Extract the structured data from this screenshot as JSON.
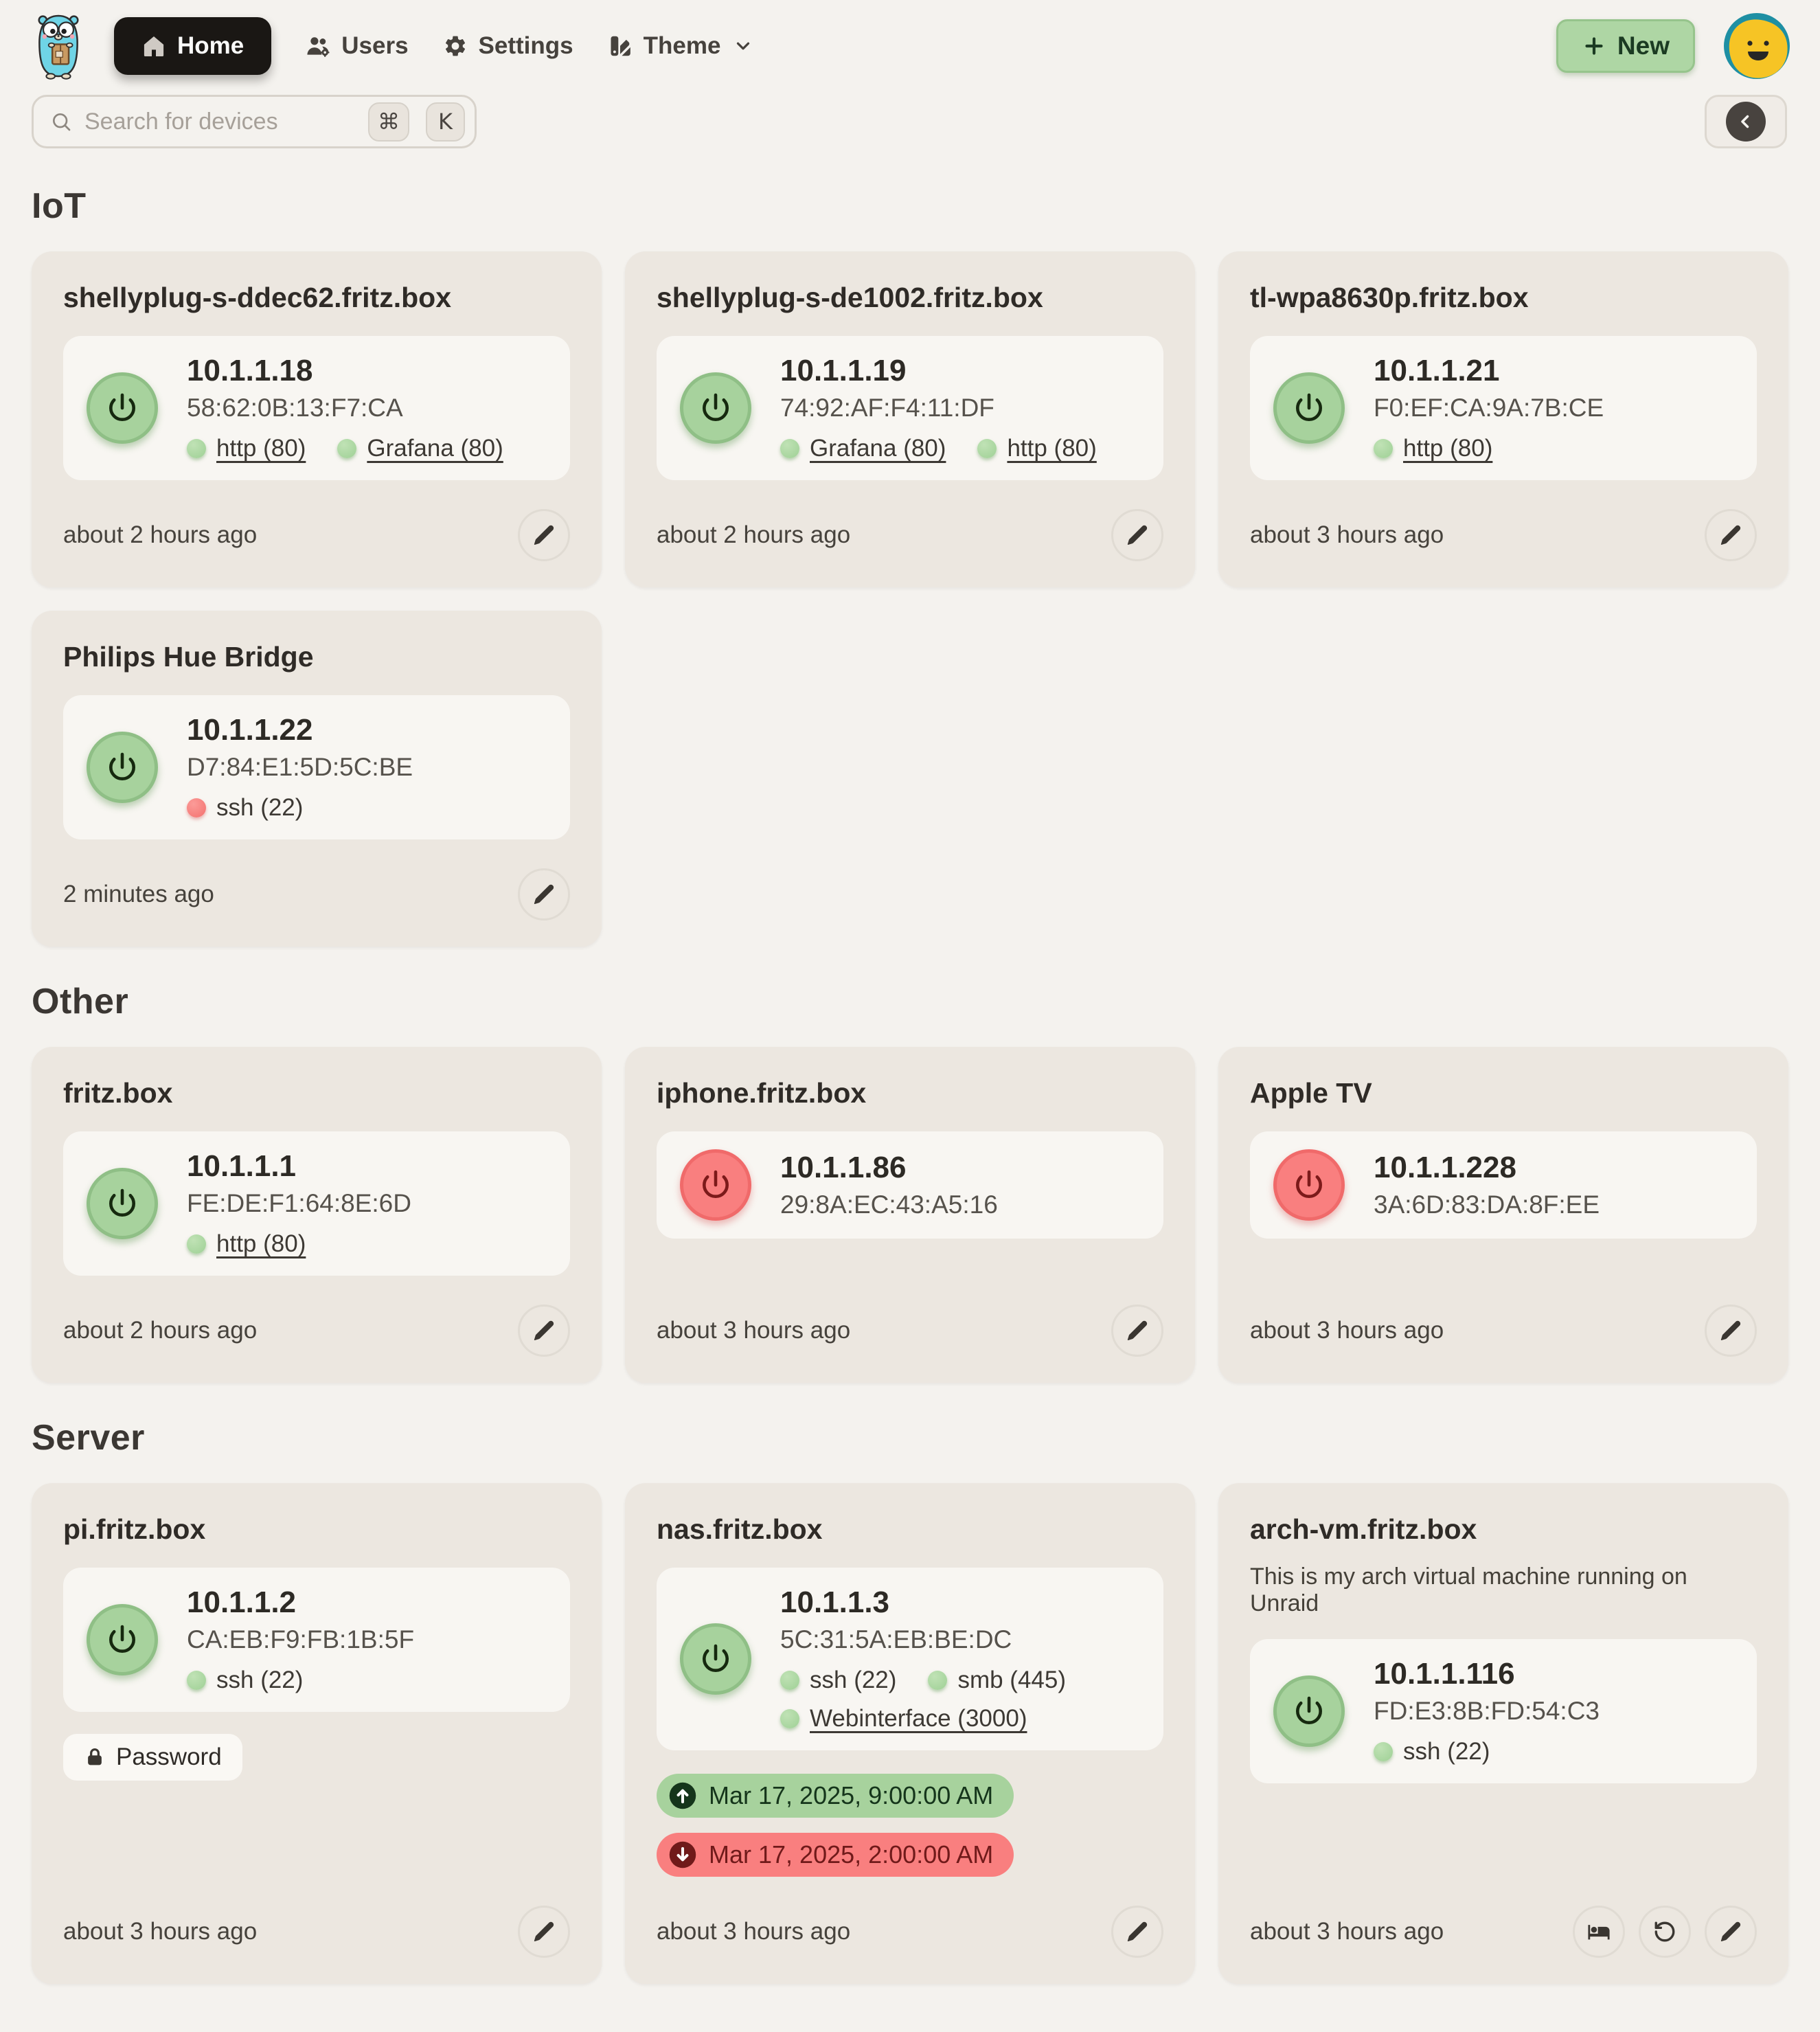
{
  "nav": {
    "logo_icon": "go-gopher-logo",
    "items": [
      {
        "label": "Home",
        "icon": "home-icon",
        "active": true
      },
      {
        "label": "Users",
        "icon": "users-gear-icon",
        "active": false
      },
      {
        "label": "Settings",
        "icon": "gear-icon",
        "active": false
      },
      {
        "label": "Theme",
        "icon": "theme-swatches-icon",
        "active": false,
        "has_dropdown": true
      }
    ],
    "new_label": "New",
    "avatar_icon": "smiley-avatar"
  },
  "search": {
    "placeholder": "Search for devices",
    "shortcut_keys": [
      "⌘",
      "K"
    ]
  },
  "colors": {
    "page_bg": "#f4f2ee",
    "card_bg": "#ece7e0",
    "panel_bg": "#f8f6f2",
    "online_green": "#a7d29d",
    "online_green_border": "#8fbf86",
    "offline_red": "#f97f7f",
    "offline_red_border": "#f06a6a",
    "badge_up_text": "#15351b",
    "badge_down_text": "#701a1a",
    "nav_active_bg": "#1a1714",
    "new_button_bg": "#aed6a4",
    "text_primary": "#2f2b27",
    "text_secondary": "#56524c"
  },
  "sections": [
    {
      "title": "IoT",
      "devices": [
        {
          "name": "shellyplug-s-ddec62.fritz.box",
          "online": true,
          "ip": "10.1.1.18",
          "mac": "58:62:0B:13:F7:CA",
          "ports": [
            {
              "label": "http (80)",
              "open": true,
              "link": true
            },
            {
              "label": "Grafana (80)",
              "open": true,
              "link": true
            }
          ],
          "last_seen": "about 2 hours ago",
          "actions": [
            "edit"
          ]
        },
        {
          "name": "shellyplug-s-de1002.fritz.box",
          "online": true,
          "ip": "10.1.1.19",
          "mac": "74:92:AF:F4:11:DF",
          "ports": [
            {
              "label": "Grafana (80)",
              "open": true,
              "link": true
            },
            {
              "label": "http (80)",
              "open": true,
              "link": true
            }
          ],
          "last_seen": "about 2 hours ago",
          "actions": [
            "edit"
          ]
        },
        {
          "name": "tl-wpa8630p.fritz.box",
          "online": true,
          "ip": "10.1.1.21",
          "mac": "F0:EF:CA:9A:7B:CE",
          "ports": [
            {
              "label": "http (80)",
              "open": true,
              "link": true
            }
          ],
          "last_seen": "about 3 hours ago",
          "actions": [
            "edit"
          ]
        },
        {
          "name": "Philips Hue Bridge",
          "online": true,
          "ip": "10.1.1.22",
          "mac": "D7:84:E1:5D:5C:BE",
          "ports": [
            {
              "label": "ssh (22)",
              "open": false,
              "link": false
            }
          ],
          "last_seen": "2 minutes ago",
          "actions": [
            "edit"
          ]
        }
      ]
    },
    {
      "title": "Other",
      "devices": [
        {
          "name": "fritz.box",
          "online": true,
          "ip": "10.1.1.1",
          "mac": "FE:DE:F1:64:8E:6D",
          "ports": [
            {
              "label": "http (80)",
              "open": true,
              "link": true
            }
          ],
          "last_seen": "about 2 hours ago",
          "actions": [
            "edit"
          ]
        },
        {
          "name": "iphone.fritz.box",
          "online": false,
          "ip": "10.1.1.86",
          "mac": "29:8A:EC:43:A5:16",
          "ports": [],
          "last_seen": "about 3 hours ago",
          "actions": [
            "edit"
          ]
        },
        {
          "name": "Apple TV",
          "online": false,
          "ip": "10.1.1.228",
          "mac": "3A:6D:83:DA:8F:EE",
          "ports": [],
          "last_seen": "about 3 hours ago",
          "actions": [
            "edit"
          ]
        }
      ]
    },
    {
      "title": "Server",
      "devices": [
        {
          "name": "pi.fritz.box",
          "online": true,
          "ip": "10.1.1.2",
          "mac": "CA:EB:F9:FB:1B:5F",
          "ports": [
            {
              "label": "ssh (22)",
              "open": true,
              "link": false
            }
          ],
          "password_label": "Password",
          "last_seen": "about 3 hours ago",
          "actions": [
            "edit"
          ]
        },
        {
          "name": "nas.fritz.box",
          "online": true,
          "ip": "10.1.1.3",
          "mac": "5C:31:5A:EB:BE:DC",
          "ports": [
            {
              "label": "ssh (22)",
              "open": true,
              "link": false
            },
            {
              "label": "smb (445)",
              "open": true,
              "link": false
            },
            {
              "label": "Webinterface (3000)",
              "open": true,
              "link": true
            }
          ],
          "schedule_up": "Mar 17, 2025, 9:00:00 AM",
          "schedule_down": "Mar 17, 2025, 2:00:00 AM",
          "last_seen": "about 3 hours ago",
          "actions": [
            "edit"
          ]
        },
        {
          "name": "arch-vm.fritz.box",
          "description": "This is my arch virtual machine running on Unraid",
          "online": true,
          "ip": "10.1.1.116",
          "mac": "FD:E3:8B:FD:54:C3",
          "ports": [
            {
              "label": "ssh (22)",
              "open": true,
              "link": false
            }
          ],
          "last_seen": "about 3 hours ago",
          "actions": [
            "sleep",
            "restart",
            "edit"
          ]
        }
      ]
    }
  ]
}
